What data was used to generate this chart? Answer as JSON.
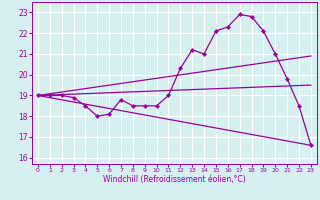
{
  "xlabel": "Windchill (Refroidissement éolien,°C)",
  "bg_color": "#d6f0f0",
  "grid_color": "#b8e0e0",
  "line_color": "#990099",
  "xlim": [
    -0.5,
    23.5
  ],
  "ylim": [
    15.7,
    23.5
  ],
  "yticks": [
    16,
    17,
    18,
    19,
    20,
    21,
    22,
    23
  ],
  "xticks": [
    0,
    1,
    2,
    3,
    4,
    5,
    6,
    7,
    8,
    9,
    10,
    11,
    12,
    13,
    14,
    15,
    16,
    17,
    18,
    19,
    20,
    21,
    22,
    23
  ],
  "series": [
    {
      "x": [
        0,
        1,
        2,
        3,
        4,
        5,
        6,
        7,
        8,
        9,
        10,
        11,
        12,
        13,
        14,
        15,
        16,
        17,
        18,
        19,
        20,
        21,
        22,
        23
      ],
      "y": [
        19.0,
        19.0,
        19.0,
        18.9,
        18.5,
        18.0,
        18.1,
        18.8,
        18.5,
        18.5,
        18.5,
        19.0,
        20.3,
        21.2,
        21.0,
        22.1,
        22.3,
        22.9,
        22.8,
        22.1,
        21.0,
        19.8,
        18.5,
        16.6
      ],
      "marker": true
    },
    {
      "x": [
        0,
        23
      ],
      "y": [
        19.0,
        19.5
      ],
      "marker": false
    },
    {
      "x": [
        0,
        23
      ],
      "y": [
        19.0,
        16.6
      ],
      "marker": false
    },
    {
      "x": [
        0,
        23
      ],
      "y": [
        19.0,
        20.9
      ],
      "marker": false
    }
  ]
}
